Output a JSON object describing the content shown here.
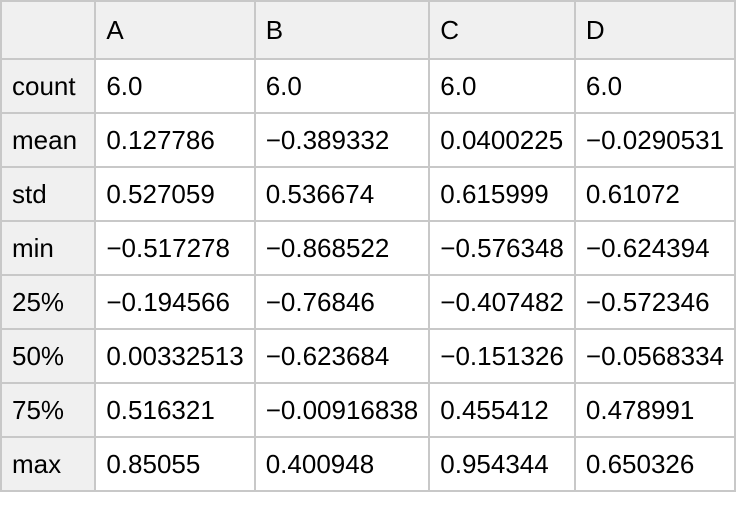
{
  "chart_data": {
    "type": "table",
    "title": "",
    "columns": [
      "",
      "A",
      "B",
      "C",
      "D"
    ],
    "row_labels": [
      "count",
      "mean",
      "std",
      "min",
      "25%",
      "50%",
      "75%",
      "max"
    ],
    "rows": [
      {
        "label": "count",
        "values": [
          "6.0",
          "6.0",
          "6.0",
          "6.0"
        ]
      },
      {
        "label": "mean",
        "values": [
          "0.127786",
          "−0.389332",
          "0.0400225",
          "−0.0290531"
        ]
      },
      {
        "label": "std",
        "values": [
          "0.527059",
          "0.536674",
          "0.615999",
          "0.61072"
        ]
      },
      {
        "label": "min",
        "values": [
          "−0.517278",
          "−0.868522",
          "−0.576348",
          "−0.624394"
        ]
      },
      {
        "label": "25%",
        "values": [
          "−0.194566",
          "−0.76846",
          "−0.407482",
          "−0.572346"
        ]
      },
      {
        "label": "50%",
        "values": [
          "0.00332513",
          "−0.623684",
          "−0.151326",
          "−0.0568334"
        ]
      },
      {
        "label": "75%",
        "values": [
          "0.516321",
          "−0.00916838",
          "0.455412",
          "0.478991"
        ]
      },
      {
        "label": "max",
        "values": [
          "0.85055",
          "0.400948",
          "0.954344",
          "0.650326"
        ]
      }
    ]
  },
  "colors": {
    "header_background": "#f0f0f0",
    "cell_background": "#ffffff",
    "border": "#c8c8c8",
    "text": "#000000"
  }
}
